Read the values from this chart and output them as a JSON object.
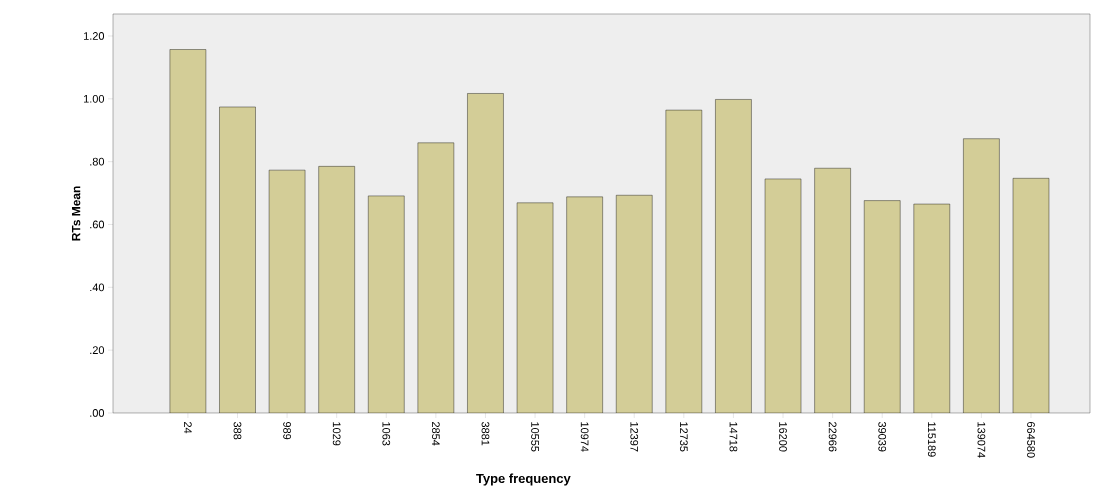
{
  "chart_data": {
    "type": "bar",
    "xlabel": "Type frequency",
    "ylabel": "RTs Mean",
    "categories": [
      "24",
      "388",
      "989",
      "1029",
      "1063",
      "2854",
      "3881",
      "10555",
      "10974",
      "12397",
      "12735",
      "14718",
      "16200",
      "22966",
      "39039",
      "115189",
      "139074",
      "664580"
    ],
    "values": [
      1.157,
      0.974,
      0.773,
      0.785,
      0.691,
      0.86,
      1.017,
      0.669,
      0.688,
      0.693,
      0.964,
      0.998,
      0.745,
      0.779,
      0.676,
      0.665,
      0.873,
      0.747
    ],
    "color": "#d3cd97",
    "ylim": [
      0,
      1.27
    ],
    "yticks": [
      {
        "value": 0,
        "label": ".00"
      },
      {
        "value": 0.2,
        "label": ".20"
      },
      {
        "value": 0.4,
        "label": ".40"
      },
      {
        "value": 0.6,
        "label": ".60"
      },
      {
        "value": 0.8,
        "label": ".80"
      },
      {
        "value": 1.0,
        "label": "1.00"
      },
      {
        "value": 1.2,
        "label": "1.20"
      }
    ],
    "grid": false
  }
}
